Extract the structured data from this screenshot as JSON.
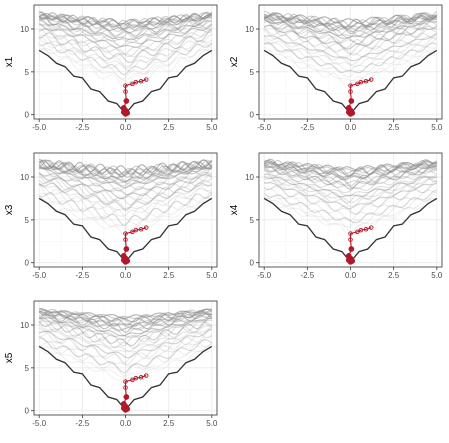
{
  "colors": {
    "panel_border": "#333333",
    "grid_major": "#ebebeb",
    "grid_minor": "#f5f5f5",
    "background_curves": "#8c8c8c",
    "true_curve": "#333333",
    "highlight": "#b2182b"
  },
  "chart_data": [
    {
      "type": "line",
      "ylabel": "x1",
      "xlim": [
        -5.3,
        5.3
      ],
      "ylim": [
        -0.5,
        12.8
      ],
      "x_ticks": [
        -5.0,
        -2.5,
        0.0,
        2.5,
        5.0
      ],
      "x_tick_labels": [
        "-5.0",
        "-2.5",
        "0.0",
        "2.5",
        "5.0"
      ],
      "y_ticks": [
        0,
        5,
        10
      ],
      "y_tick_labels": [
        "0",
        "5",
        "10"
      ],
      "grid": true,
      "true_curve": {
        "x": [
          -5.0,
          -4.5,
          -4.0,
          -3.5,
          -3.0,
          -2.5,
          -2.0,
          -1.5,
          -1.0,
          -0.5,
          0.0,
          0.5,
          1.0,
          1.5,
          2.0,
          2.5,
          3.0,
          3.5,
          4.0,
          4.5,
          5.0
        ],
        "y": [
          7.5,
          6.9,
          6.0,
          5.6,
          4.5,
          4.3,
          3.0,
          2.7,
          1.6,
          1.3,
          0.1,
          1.3,
          1.6,
          2.7,
          3.0,
          4.3,
          4.5,
          5.6,
          6.0,
          6.9,
          7.5
        ]
      },
      "background_band": {
        "y_min": 7.5,
        "y_max": 11.8,
        "count": 28
      },
      "highlight_path": {
        "x": [
          0.0,
          -0.1,
          0.0,
          0.1,
          -0.1,
          0.05,
          0.0,
          0.0,
          0.4,
          0.6,
          0.9,
          1.2
        ],
        "y": [
          0.1,
          0.3,
          0.5,
          0.2,
          0.8,
          1.6,
          2.7,
          3.4,
          3.6,
          3.8,
          3.9,
          4.1
        ]
      }
    },
    {
      "type": "line",
      "ylabel": "x2",
      "xlim": [
        -5.3,
        5.3
      ],
      "ylim": [
        -0.5,
        12.8
      ],
      "x_ticks": [
        -5.0,
        -2.5,
        0.0,
        2.5,
        5.0
      ],
      "x_tick_labels": [
        "-5.0",
        "-2.5",
        "0.0",
        "2.5",
        "5.0"
      ],
      "y_ticks": [
        0,
        5,
        10
      ],
      "y_tick_labels": [
        "0",
        "5",
        "10"
      ],
      "grid": true,
      "true_curve": {
        "x": [
          -5.0,
          -4.5,
          -4.0,
          -3.5,
          -3.0,
          -2.5,
          -2.0,
          -1.5,
          -1.0,
          -0.5,
          0.0,
          0.5,
          1.0,
          1.5,
          2.0,
          2.5,
          3.0,
          3.5,
          4.0,
          4.5,
          5.0
        ],
        "y": [
          7.5,
          6.9,
          6.0,
          5.6,
          4.5,
          4.3,
          3.0,
          2.7,
          1.6,
          1.3,
          0.1,
          1.3,
          1.6,
          2.7,
          3.0,
          4.3,
          4.5,
          5.6,
          6.0,
          6.9,
          7.5
        ]
      },
      "background_band": {
        "y_min": 7.5,
        "y_max": 11.8,
        "count": 28
      },
      "highlight_path": {
        "x": [
          0.0,
          -0.1,
          0.0,
          0.1,
          -0.1,
          0.05,
          0.0,
          0.0,
          0.4,
          0.6,
          0.9,
          1.2
        ],
        "y": [
          0.1,
          0.3,
          0.5,
          0.2,
          0.8,
          1.6,
          2.7,
          3.4,
          3.6,
          3.8,
          3.9,
          4.1
        ]
      }
    },
    {
      "type": "line",
      "ylabel": "x3",
      "xlim": [
        -5.3,
        5.3
      ],
      "ylim": [
        -0.5,
        12.8
      ],
      "x_ticks": [
        -5.0,
        -2.5,
        0.0,
        2.5,
        5.0
      ],
      "x_tick_labels": [
        "-5.0",
        "-2.5",
        "0.0",
        "2.5",
        "5.0"
      ],
      "y_ticks": [
        0,
        5,
        10
      ],
      "y_tick_labels": [
        "0",
        "5",
        "10"
      ],
      "grid": true,
      "true_curve": {
        "x": [
          -5.0,
          -4.5,
          -4.0,
          -3.5,
          -3.0,
          -2.5,
          -2.0,
          -1.5,
          -1.0,
          -0.5,
          0.0,
          0.5,
          1.0,
          1.5,
          2.0,
          2.5,
          3.0,
          3.5,
          4.0,
          4.5,
          5.0
        ],
        "y": [
          7.5,
          6.9,
          6.0,
          5.6,
          4.5,
          4.3,
          3.0,
          2.7,
          1.6,
          1.3,
          0.1,
          1.3,
          1.6,
          2.7,
          3.0,
          4.3,
          4.5,
          5.6,
          6.0,
          6.9,
          7.5
        ]
      },
      "background_band": {
        "y_min": 7.5,
        "y_max": 11.8,
        "count": 28
      },
      "highlight_path": {
        "x": [
          0.0,
          -0.1,
          0.0,
          0.1,
          -0.1,
          0.05,
          0.0,
          0.0,
          0.4,
          0.6,
          0.9,
          1.2
        ],
        "y": [
          0.1,
          0.3,
          0.5,
          0.2,
          0.8,
          1.6,
          2.7,
          3.4,
          3.6,
          3.8,
          3.9,
          4.1
        ]
      }
    },
    {
      "type": "line",
      "ylabel": "x4",
      "xlim": [
        -5.3,
        5.3
      ],
      "ylim": [
        -0.5,
        12.8
      ],
      "x_ticks": [
        -5.0,
        -2.5,
        0.0,
        2.5,
        5.0
      ],
      "x_tick_labels": [
        "-5.0",
        "-2.5",
        "0.0",
        "2.5",
        "5.0"
      ],
      "y_ticks": [
        0,
        5,
        10
      ],
      "y_tick_labels": [
        "0",
        "5",
        "10"
      ],
      "grid": true,
      "true_curve": {
        "x": [
          -5.0,
          -4.5,
          -4.0,
          -3.5,
          -3.0,
          -2.5,
          -2.0,
          -1.5,
          -1.0,
          -0.5,
          0.0,
          0.5,
          1.0,
          1.5,
          2.0,
          2.5,
          3.0,
          3.5,
          4.0,
          4.5,
          5.0
        ],
        "y": [
          7.5,
          6.9,
          6.0,
          5.6,
          4.5,
          4.3,
          3.0,
          2.7,
          1.6,
          1.3,
          0.1,
          1.3,
          1.6,
          2.7,
          3.0,
          4.3,
          4.5,
          5.6,
          6.0,
          6.9,
          7.5
        ]
      },
      "background_band": {
        "y_min": 7.5,
        "y_max": 11.8,
        "count": 28
      },
      "highlight_path": {
        "x": [
          0.0,
          -0.1,
          0.0,
          0.1,
          -0.1,
          0.05,
          0.0,
          0.0,
          0.4,
          0.6,
          0.9,
          1.2
        ],
        "y": [
          0.1,
          0.3,
          0.5,
          0.2,
          0.8,
          1.6,
          2.7,
          3.4,
          3.6,
          3.8,
          3.9,
          4.1
        ]
      }
    },
    {
      "type": "line",
      "ylabel": "x5",
      "xlim": [
        -5.3,
        5.3
      ],
      "ylim": [
        -0.5,
        12.8
      ],
      "x_ticks": [
        -5.0,
        -2.5,
        0.0,
        2.5,
        5.0
      ],
      "x_tick_labels": [
        "-5.0",
        "-2.5",
        "0.0",
        "2.5",
        "5.0"
      ],
      "y_ticks": [
        0,
        5,
        10
      ],
      "y_tick_labels": [
        "0",
        "5",
        "10"
      ],
      "grid": true,
      "true_curve": {
        "x": [
          -5.0,
          -4.5,
          -4.0,
          -3.5,
          -3.0,
          -2.5,
          -2.0,
          -1.5,
          -1.0,
          -0.5,
          0.0,
          0.5,
          1.0,
          1.5,
          2.0,
          2.5,
          3.0,
          3.5,
          4.0,
          4.5,
          5.0
        ],
        "y": [
          7.5,
          6.9,
          6.0,
          5.6,
          4.5,
          4.3,
          3.0,
          2.7,
          1.6,
          1.3,
          0.1,
          1.3,
          1.6,
          2.7,
          3.0,
          4.3,
          4.5,
          5.6,
          6.0,
          6.9,
          7.5
        ]
      },
      "background_band": {
        "y_min": 7.5,
        "y_max": 11.8,
        "count": 28
      },
      "highlight_path": {
        "x": [
          0.0,
          -0.1,
          0.0,
          0.1,
          -0.1,
          0.05,
          0.0,
          0.0,
          0.4,
          0.6,
          0.9,
          1.2
        ],
        "y": [
          0.1,
          0.3,
          0.5,
          0.2,
          0.8,
          1.6,
          2.7,
          3.4,
          3.6,
          3.8,
          3.9,
          4.1
        ]
      }
    }
  ]
}
